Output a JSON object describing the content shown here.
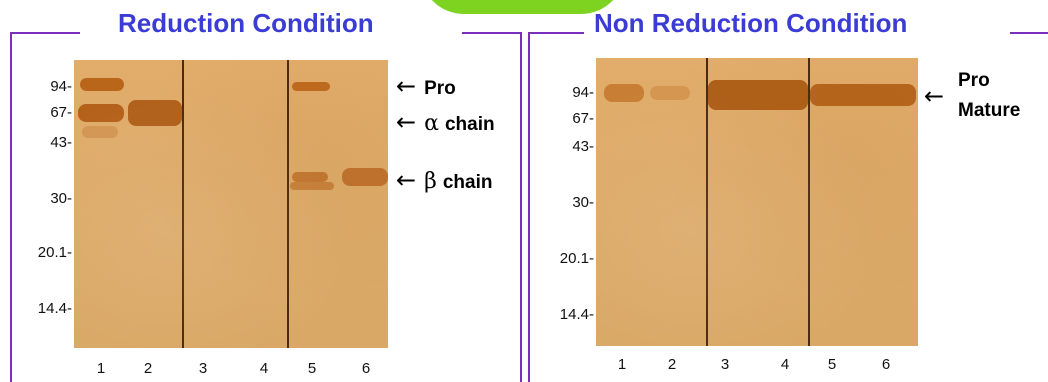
{
  "panels": [
    {
      "title": "Reduction Condition",
      "mw_markers": [
        "94-",
        "67-",
        "43-",
        "30-",
        "20.1-",
        "14.4-"
      ],
      "lanes": [
        "1",
        "2",
        "3",
        "4",
        "5",
        "6"
      ],
      "annotations": [
        {
          "arrow": "←",
          "greek": "",
          "text": "Pro"
        },
        {
          "arrow": "←",
          "greek": "α",
          "text": "chain"
        },
        {
          "arrow": "←",
          "greek": "β",
          "text": "chain"
        }
      ]
    },
    {
      "title": "Non Reduction Condition",
      "mw_markers": [
        "94-",
        "67-",
        "43-",
        "30-",
        "20.1-",
        "14.4-"
      ],
      "lanes": [
        "1",
        "2",
        "3",
        "4",
        "5",
        "6"
      ],
      "annotations": [
        {
          "arrow": "←",
          "text": "Pro"
        },
        {
          "text": "Mature"
        }
      ]
    }
  ],
  "colors": {
    "title": "#3b3bd6",
    "frame": "#7b2fbf",
    "gel": "#e2ad6b",
    "band": "#b8661a",
    "accent_tab": "#7ed321"
  }
}
